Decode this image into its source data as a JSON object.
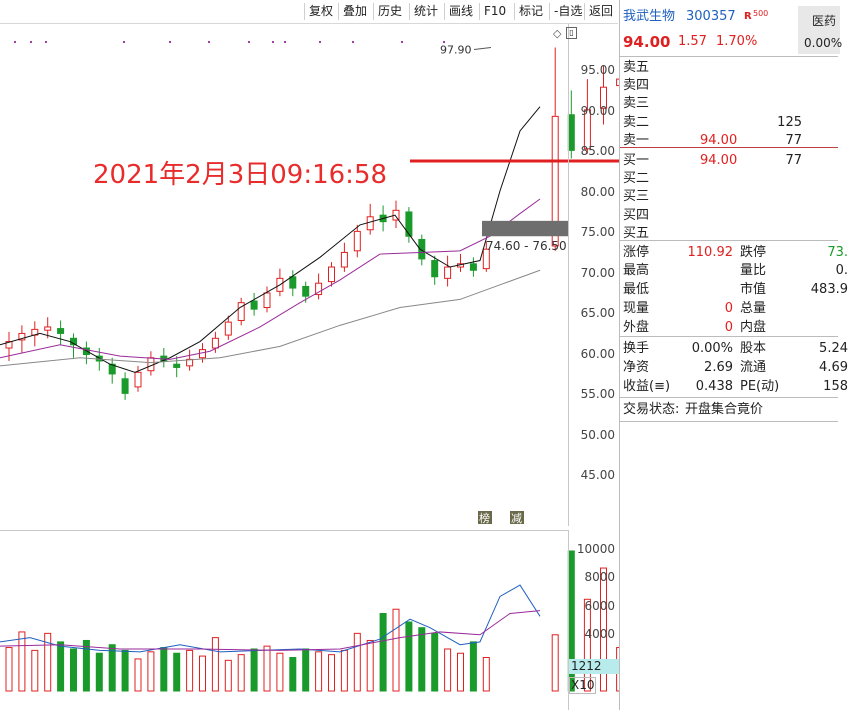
{
  "toolbar": {
    "buttons": [
      "复权",
      "叠加",
      "历史",
      "统计",
      "画线",
      "F10",
      "标记",
      "-自选",
      "返回"
    ]
  },
  "chart": {
    "overlay_time": "2021年2月3日09:16:58",
    "high_marker": "97.90",
    "range_label": "74.60 - 76.50",
    "y_ticks": [
      "95.00",
      "90.00",
      "85.00",
      "80.00",
      "75.00",
      "70.00",
      "65.00",
      "60.00",
      "55.00",
      "50.00",
      "45.00"
    ],
    "badges": [
      "榜",
      "减"
    ],
    "colors": {
      "up": "#e02020",
      "down": "#1a9a2a",
      "ma5": "#111111",
      "ma10": "#9a2a9a",
      "ma20": "#888888"
    }
  },
  "volume": {
    "y_ticks": [
      "10000",
      "8000",
      "6000",
      "4000"
    ],
    "current": "1212",
    "multiplier": "X10"
  },
  "stock": {
    "name": "我武生物",
    "code": "300357",
    "tag_r": "R",
    "tag_500": "500",
    "sector": "医药",
    "sector_pct": "0.00%",
    "price": "94.00",
    "change": "1.57",
    "change_pct": "1.70%"
  },
  "orderbook": {
    "sell": [
      {
        "label": "卖五",
        "price": "",
        "vol": ""
      },
      {
        "label": "卖四",
        "price": "",
        "vol": ""
      },
      {
        "label": "卖三",
        "price": "",
        "vol": ""
      },
      {
        "label": "卖二",
        "price": "",
        "vol": "125"
      },
      {
        "label": "卖一",
        "price": "94.00",
        "vol": "77"
      }
    ],
    "buy": [
      {
        "label": "买一",
        "price": "94.00",
        "vol": "77"
      },
      {
        "label": "买二",
        "price": "",
        "vol": ""
      },
      {
        "label": "买三",
        "price": "",
        "vol": ""
      },
      {
        "label": "买四",
        "price": "",
        "vol": ""
      },
      {
        "label": "买五",
        "price": "",
        "vol": ""
      }
    ]
  },
  "stats": {
    "zhangting_label": "涨停",
    "zhangting": "110.92",
    "dieting_label": "跌停",
    "dieting": "73.",
    "zuigao_label": "最高",
    "zuigao": "",
    "liangbi_label": "量比",
    "liangbi": "0.",
    "zuidi_label": "最低",
    "zuidi": "",
    "shizhi_label": "市值",
    "shizhi": "483.9",
    "xianliang_label": "现量",
    "xianliang": "0",
    "zongliang_label": "总量",
    "zongliang": "",
    "waipan_label": "外盘",
    "waipan": "0",
    "neipan_label": "内盘",
    "neipan": "",
    "huanshou_label": "换手",
    "huanshou": "0.00%",
    "guben_label": "股本",
    "guben": "5.24",
    "jingzi_label": "净资",
    "jingzi": "2.69",
    "liutong_label": "流通",
    "liutong": "4.69",
    "shouyi_label": "收益(≡)",
    "shouyi": "0.438",
    "pe_label": "PE(动)",
    "pe": "158"
  },
  "status": {
    "label": "交易状态:",
    "value": "开盘集合竟价"
  }
}
